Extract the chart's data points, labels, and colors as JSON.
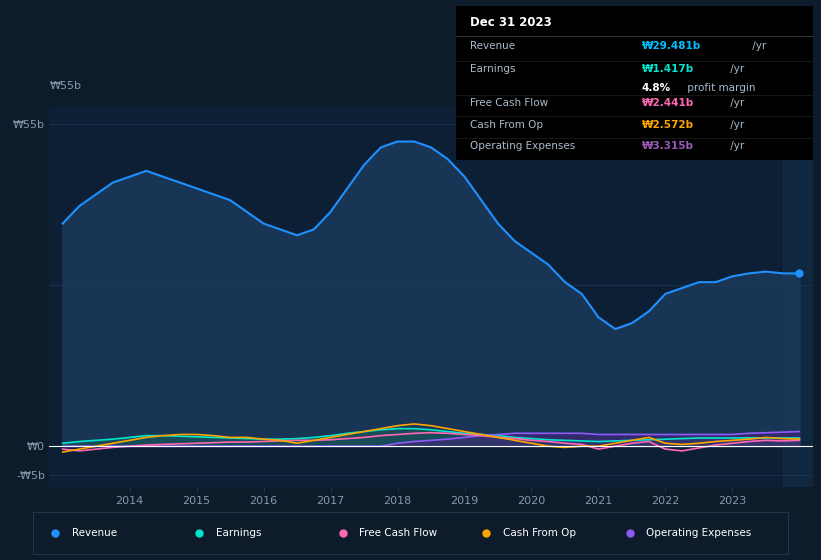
{
  "background_color": "#0d1b2a",
  "plot_bg_color": "#0d1f35",
  "years": [
    2013.0,
    2013.25,
    2013.5,
    2013.75,
    2014.0,
    2014.25,
    2014.5,
    2014.75,
    2015.0,
    2015.25,
    2015.5,
    2015.75,
    2016.0,
    2016.25,
    2016.5,
    2016.75,
    2017.0,
    2017.25,
    2017.5,
    2017.75,
    2018.0,
    2018.25,
    2018.5,
    2018.75,
    2019.0,
    2019.25,
    2019.5,
    2019.75,
    2020.0,
    2020.25,
    2020.5,
    2020.75,
    2021.0,
    2021.25,
    2021.5,
    2021.75,
    2022.0,
    2022.25,
    2022.5,
    2022.75,
    2023.0,
    2023.25,
    2023.5,
    2023.75,
    2024.0
  ],
  "revenue": [
    38,
    41,
    43,
    45,
    46,
    47,
    46,
    45,
    44,
    43,
    42,
    40,
    38,
    37,
    36,
    37,
    40,
    44,
    48,
    51,
    52,
    52,
    51,
    49,
    46,
    42,
    38,
    35,
    33,
    31,
    28,
    26,
    22,
    20,
    21,
    23,
    26,
    27,
    28,
    28,
    29,
    29.5,
    29.8,
    29.5,
    29.481
  ],
  "earnings": [
    0.5,
    0.8,
    1.0,
    1.2,
    1.5,
    1.8,
    1.8,
    1.7,
    1.6,
    1.5,
    1.4,
    1.3,
    1.2,
    1.2,
    1.3,
    1.5,
    1.8,
    2.2,
    2.5,
    2.8,
    3.0,
    3.0,
    2.8,
    2.5,
    2.2,
    2.0,
    1.8,
    1.5,
    1.3,
    1.1,
    1.0,
    0.9,
    0.8,
    0.9,
    1.0,
    1.1,
    1.2,
    1.3,
    1.4,
    1.4,
    1.4,
    1.42,
    1.4,
    1.4,
    1.417
  ],
  "free_cash_flow": [
    -0.5,
    -0.8,
    -0.5,
    -0.2,
    0.0,
    0.2,
    0.3,
    0.4,
    0.5,
    0.6,
    0.7,
    0.7,
    0.8,
    0.9,
    1.0,
    1.0,
    1.1,
    1.3,
    1.5,
    1.8,
    2.0,
    2.2,
    2.3,
    2.2,
    2.0,
    1.8,
    1.5,
    1.3,
    1.0,
    0.8,
    0.5,
    0.3,
    -0.5,
    0.0,
    0.5,
    0.8,
    -0.5,
    -0.8,
    -0.3,
    0.2,
    0.5,
    0.8,
    1.0,
    0.9,
    1.0
  ],
  "cash_from_op": [
    -1.0,
    -0.5,
    0.0,
    0.5,
    1.0,
    1.5,
    1.8,
    2.0,
    2.0,
    1.8,
    1.5,
    1.5,
    1.2,
    1.0,
    0.5,
    1.0,
    1.5,
    2.0,
    2.5,
    3.0,
    3.5,
    3.8,
    3.5,
    3.0,
    2.5,
    2.0,
    1.5,
    1.0,
    0.5,
    0.0,
    -0.2,
    0.0,
    0.0,
    0.5,
    1.0,
    1.5,
    0.5,
    0.3,
    0.5,
    0.8,
    1.0,
    1.2,
    1.5,
    1.3,
    1.2
  ],
  "operating_expenses": [
    0.0,
    0.0,
    0.0,
    0.0,
    0.0,
    0.0,
    0.0,
    0.0,
    0.0,
    0.0,
    0.0,
    0.0,
    0.0,
    0.0,
    0.0,
    0.0,
    0.0,
    0.0,
    0.0,
    0.0,
    0.5,
    0.8,
    1.0,
    1.2,
    1.5,
    1.8,
    2.0,
    2.2,
    2.2,
    2.2,
    2.2,
    2.2,
    2.0,
    2.0,
    2.0,
    2.0,
    2.0,
    2.0,
    2.0,
    2.0,
    2.0,
    2.2,
    2.3,
    2.4,
    2.5
  ],
  "ylim": [
    -7,
    58
  ],
  "yticks": [
    -5,
    0,
    55
  ],
  "ytick_labels": [
    "-₩5b",
    "₩0",
    "₩55b"
  ],
  "xticks": [
    2014,
    2015,
    2016,
    2017,
    2018,
    2019,
    2020,
    2021,
    2022,
    2023
  ],
  "revenue_color": "#1e90ff",
  "revenue_fill_color": "#1a3a5c",
  "earnings_color": "#00e5cc",
  "earnings_fill_color": "#1a5c5c",
  "free_cash_flow_color": "#ff69b4",
  "cash_from_op_color": "#ffa500",
  "operating_expenses_color": "#8b5cf6",
  "operating_expenses_fill_color": "#4a2080",
  "zero_line_color": "#ffffff",
  "grid_color": "#1e3a5c",
  "legend_border": "#2a3f5f",
  "text_color": "#8899aa",
  "info_box_bg": "#000000",
  "info_box_divider": "#333333",
  "info_label_color": "#aabbcc",
  "revenue_info_color": "#00bfff",
  "earnings_info_color": "#00e5cc",
  "fcf_info_color": "#ff69b4",
  "cfo_info_color": "#ffa500",
  "opex_info_color": "#9b59b6"
}
